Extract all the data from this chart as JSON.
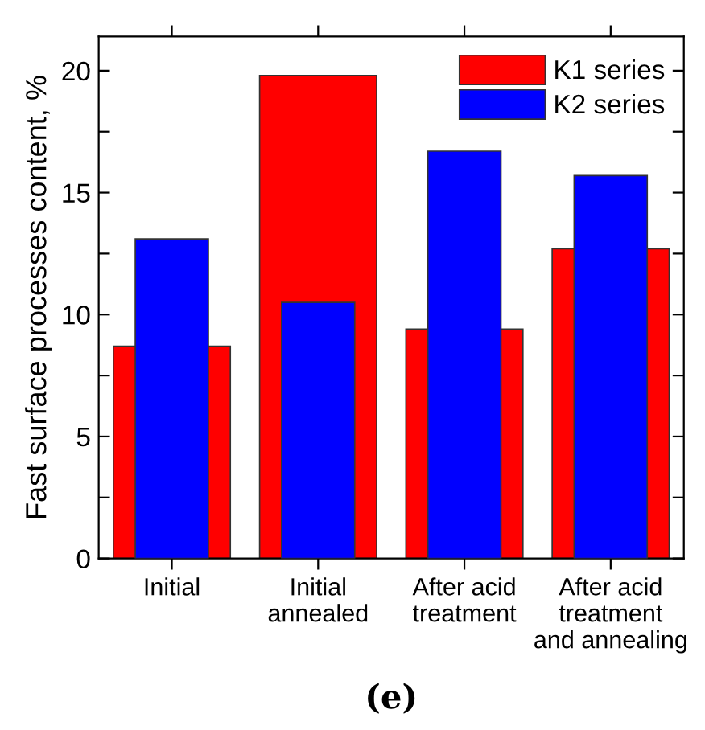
{
  "chart_data": {
    "type": "bar",
    "ylabel": "Fast surface processes content, %",
    "categories": [
      "Initial",
      "Initial\nannealed",
      "After acid\ntreatment",
      "After acid\ntreatment\nand annealing"
    ],
    "series": [
      {
        "name": "K1 series",
        "color": "#ff0000",
        "values": [
          8.7,
          19.8,
          9.4,
          12.7
        ]
      },
      {
        "name": "K2 series",
        "color": "#0000ff",
        "values": [
          13.1,
          10.5,
          16.7,
          15.7
        ]
      }
    ],
    "ylim": [
      0,
      21.4
    ],
    "yticks": [
      0,
      {
        "value": 2.5,
        "label": null
      },
      5,
      {
        "value": 7.5,
        "label": null
      },
      10,
      {
        "value": 12.5,
        "label": null
      },
      15,
      {
        "value": 17.5,
        "label": null
      },
      20
    ],
    "legend": "top right",
    "grid": false,
    "annotations": [
      "(e)"
    ]
  }
}
